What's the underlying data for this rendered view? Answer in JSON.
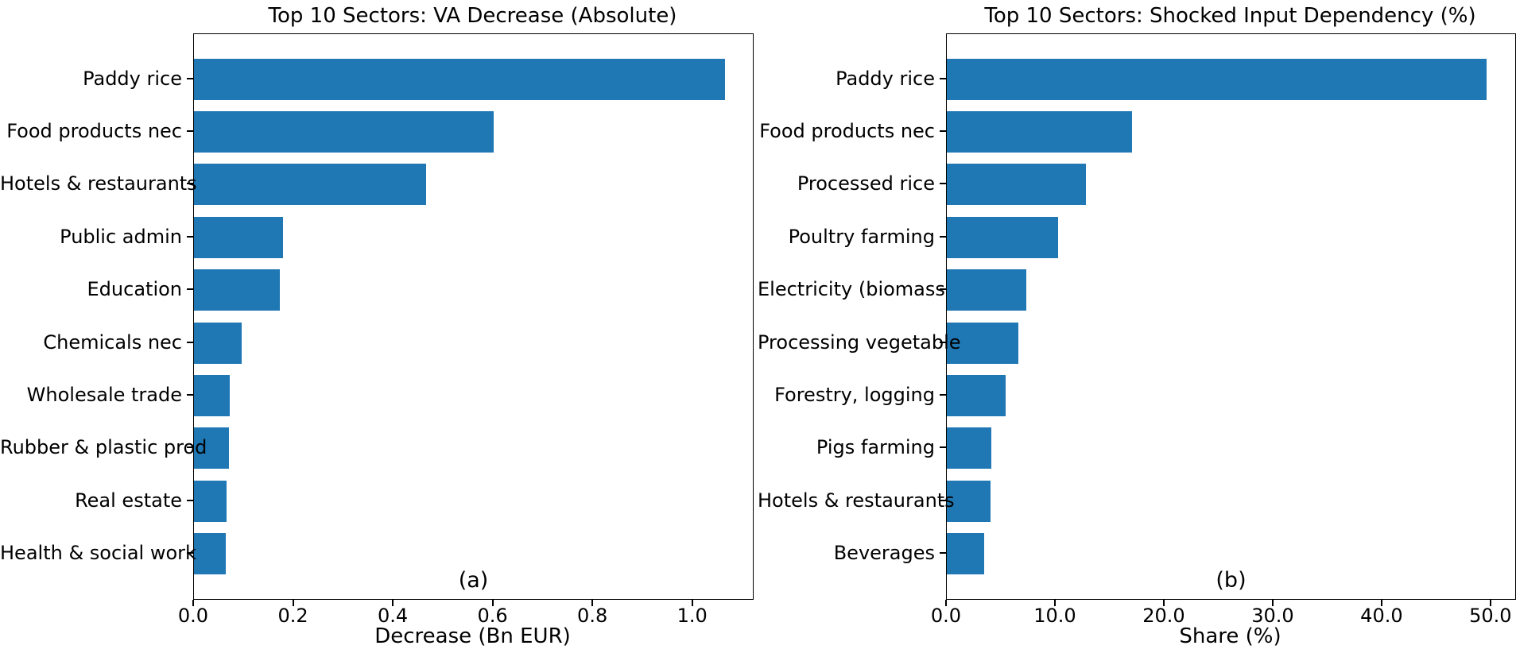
{
  "figure": {
    "background_color": "#ffffff",
    "text_color": "#000000"
  },
  "chart_data": [
    {
      "type": "bar",
      "orientation": "horizontal",
      "title": "Top 10 Sectors: VA Decrease (Absolute)",
      "subtitle": "(a)",
      "xlabel": "Decrease (Bn EUR)",
      "bar_color": "#1f77b4",
      "grid": false,
      "legend": "none",
      "categories": [
        "Paddy rice",
        "Food products nec",
        "Hotels & restaurants",
        "Public admin",
        "Education",
        "Chemicals nec",
        "Wholesale trade",
        "Rubber & plastic prod",
        "Real estate",
        "Health & social work"
      ],
      "values": [
        1.065,
        0.6,
        0.465,
        0.178,
        0.172,
        0.095,
        0.072,
        0.07,
        0.066,
        0.064
      ],
      "xlim": [
        0,
        1.12
      ],
      "xticks": [
        0.0,
        0.2,
        0.4,
        0.6,
        0.8,
        1.0
      ],
      "xtick_labels": [
        "0.0",
        "0.2",
        "0.4",
        "0.6",
        "0.8",
        "1.0"
      ]
    },
    {
      "type": "bar",
      "orientation": "horizontal",
      "title": "Top 10 Sectors: Shocked Input Dependency (%)",
      "subtitle": "(b)",
      "xlabel": "Share (%)",
      "bar_color": "#1f77b4",
      "grid": false,
      "legend": "none",
      "categories": [
        "Paddy rice",
        "Food products nec",
        "Processed rice",
        "Poultry farming",
        "Electricity (biomass",
        "Processing vegetable",
        "Forestry, logging",
        "Pigs farming",
        "Hotels & restaurants",
        "Beverages"
      ],
      "values": [
        49.6,
        17.0,
        12.8,
        10.2,
        7.3,
        6.6,
        5.4,
        4.1,
        4.0,
        3.4
      ],
      "xlim": [
        0,
        52.2
      ],
      "xticks": [
        0,
        10,
        20,
        30,
        40,
        50
      ],
      "xtick_labels": [
        "0.0",
        "10.0",
        "20.0",
        "30.0",
        "40.0",
        "50.0"
      ]
    }
  ]
}
